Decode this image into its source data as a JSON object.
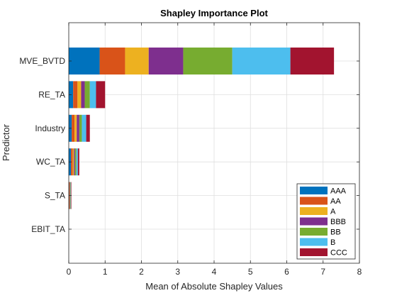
{
  "chart_data": {
    "type": "bar",
    "orientation": "horizontal",
    "stacked": true,
    "title": "Shapley Importance Plot",
    "xlabel": "Mean of Absolute Shapley Values",
    "ylabel": "Predictor",
    "xlim": [
      0,
      8
    ],
    "xticks": [
      "0",
      "1",
      "2",
      "3",
      "4",
      "5",
      "6",
      "7",
      "8"
    ],
    "grid": true,
    "legend_position": "bottom-right",
    "categories": [
      "MVE_BVTD",
      "RE_TA",
      "Industry",
      "WC_TA",
      "S_TA",
      "EBIT_TA"
    ],
    "series": [
      {
        "name": "AAA",
        "color": "#0072BD",
        "values": [
          0.85,
          0.12,
          0.08,
          0.06,
          0.01,
          0.0
        ]
      },
      {
        "name": "AA",
        "color": "#D95319",
        "values": [
          0.7,
          0.12,
          0.08,
          0.05,
          0.01,
          0.0
        ]
      },
      {
        "name": "A",
        "color": "#EDB120",
        "values": [
          0.65,
          0.1,
          0.06,
          0.03,
          0.01,
          0.0
        ]
      },
      {
        "name": "BBB",
        "color": "#7E2F8E",
        "values": [
          0.95,
          0.1,
          0.07,
          0.03,
          0.01,
          0.0
        ]
      },
      {
        "name": "BB",
        "color": "#77AC30",
        "values": [
          1.35,
          0.14,
          0.07,
          0.04,
          0.01,
          0.0
        ]
      },
      {
        "name": "B",
        "color": "#4DBEEE",
        "values": [
          1.6,
          0.17,
          0.12,
          0.04,
          0.01,
          0.0
        ]
      },
      {
        "name": "CCC",
        "color": "#A2142F",
        "values": [
          1.2,
          0.25,
          0.1,
          0.04,
          0.01,
          0.0
        ]
      }
    ]
  }
}
